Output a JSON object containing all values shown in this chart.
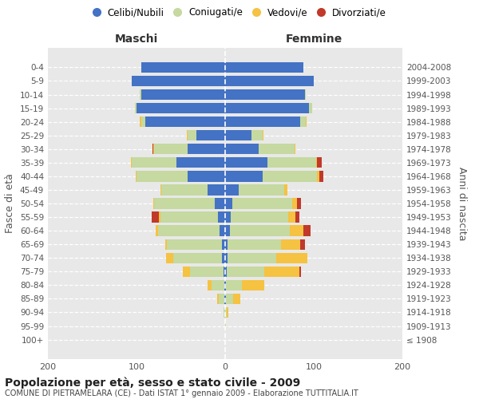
{
  "age_groups": [
    "100+",
    "95-99",
    "90-94",
    "85-89",
    "80-84",
    "75-79",
    "70-74",
    "65-69",
    "60-64",
    "55-59",
    "50-54",
    "45-49",
    "40-44",
    "35-39",
    "30-34",
    "25-29",
    "20-24",
    "15-19",
    "10-14",
    "5-9",
    "0-4"
  ],
  "birth_years": [
    "≤ 1908",
    "1909-1913",
    "1914-1918",
    "1919-1923",
    "1924-1928",
    "1929-1933",
    "1934-1938",
    "1939-1943",
    "1944-1948",
    "1949-1953",
    "1954-1958",
    "1959-1963",
    "1964-1968",
    "1969-1973",
    "1974-1978",
    "1979-1983",
    "1984-1988",
    "1989-1993",
    "1994-1998",
    "1999-2003",
    "2004-2008"
  ],
  "males_celibi": [
    0,
    0,
    0,
    1,
    1,
    2,
    4,
    4,
    6,
    8,
    12,
    20,
    42,
    55,
    42,
    32,
    90,
    100,
    95,
    105,
    95
  ],
  "males_coniugati": [
    0,
    0,
    2,
    6,
    14,
    38,
    55,
    62,
    70,
    65,
    68,
    52,
    58,
    50,
    38,
    10,
    5,
    2,
    1,
    0,
    0
  ],
  "males_vedovi": [
    0,
    0,
    0,
    2,
    5,
    8,
    8,
    2,
    2,
    2,
    1,
    1,
    1,
    1,
    1,
    1,
    1,
    0,
    0,
    0,
    0
  ],
  "males_divorziati": [
    0,
    0,
    0,
    0,
    0,
    0,
    0,
    0,
    0,
    8,
    0,
    0,
    0,
    0,
    1,
    0,
    0,
    0,
    0,
    0,
    0
  ],
  "females_nubili": [
    0,
    0,
    0,
    1,
    1,
    2,
    3,
    3,
    5,
    6,
    8,
    15,
    42,
    48,
    38,
    30,
    85,
    95,
    90,
    100,
    88
  ],
  "females_coniugate": [
    0,
    1,
    2,
    8,
    18,
    42,
    55,
    60,
    68,
    65,
    68,
    52,
    62,
    55,
    40,
    12,
    6,
    3,
    1,
    0,
    0
  ],
  "females_vedove": [
    0,
    0,
    2,
    8,
    25,
    40,
    35,
    22,
    15,
    8,
    5,
    3,
    2,
    1,
    1,
    1,
    1,
    0,
    0,
    0,
    0
  ],
  "females_divorziate": [
    0,
    0,
    0,
    0,
    0,
    2,
    0,
    5,
    8,
    5,
    5,
    0,
    5,
    5,
    0,
    0,
    0,
    0,
    0,
    0,
    0
  ],
  "colors": {
    "celibi_nubili": "#4472c4",
    "coniugati": "#c5d9a0",
    "vedovi": "#f5c242",
    "divorziati": "#c0392b"
  },
  "title": "Popolazione per età, sesso e stato civile - 2009",
  "subtitle": "COMUNE DI PIETRAMELARA (CE) - Dati ISTAT 1° gennaio 2009 - Elaborazione TUTTITALIA.IT",
  "xlabel_left": "Maschi",
  "xlabel_right": "Femmine",
  "ylabel_left": "Fasce di età",
  "ylabel_right": "Anni di nascita",
  "legend_labels": [
    "Celibi/Nubili",
    "Coniugati/e",
    "Vedovi/e",
    "Divorziati/e"
  ]
}
